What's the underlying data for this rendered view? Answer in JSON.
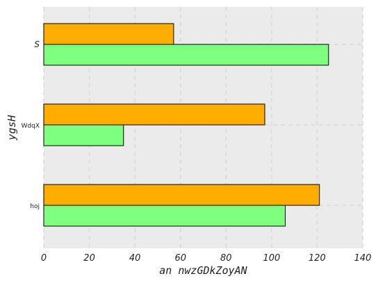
{
  "chart_data": {
    "type": "bar",
    "orientation": "horizontal",
    "categories": [
      "S",
      "WdqX",
      "hoj"
    ],
    "series": [
      {
        "values": [
          57,
          97,
          121
        ],
        "color": "#FFAE00"
      },
      {
        "values": [
          125,
          35,
          106
        ],
        "color": "#7FFF7F"
      }
    ],
    "xlabel": "an nwzGDkZoyAN",
    "ylabel": "ygsH",
    "xlim": [
      0,
      140
    ],
    "xticks": [
      0,
      20,
      40,
      60,
      80,
      100,
      120,
      140
    ],
    "grid": true,
    "plot_background": "#EBEBEB",
    "grid_color": "#D9D9D9"
  }
}
